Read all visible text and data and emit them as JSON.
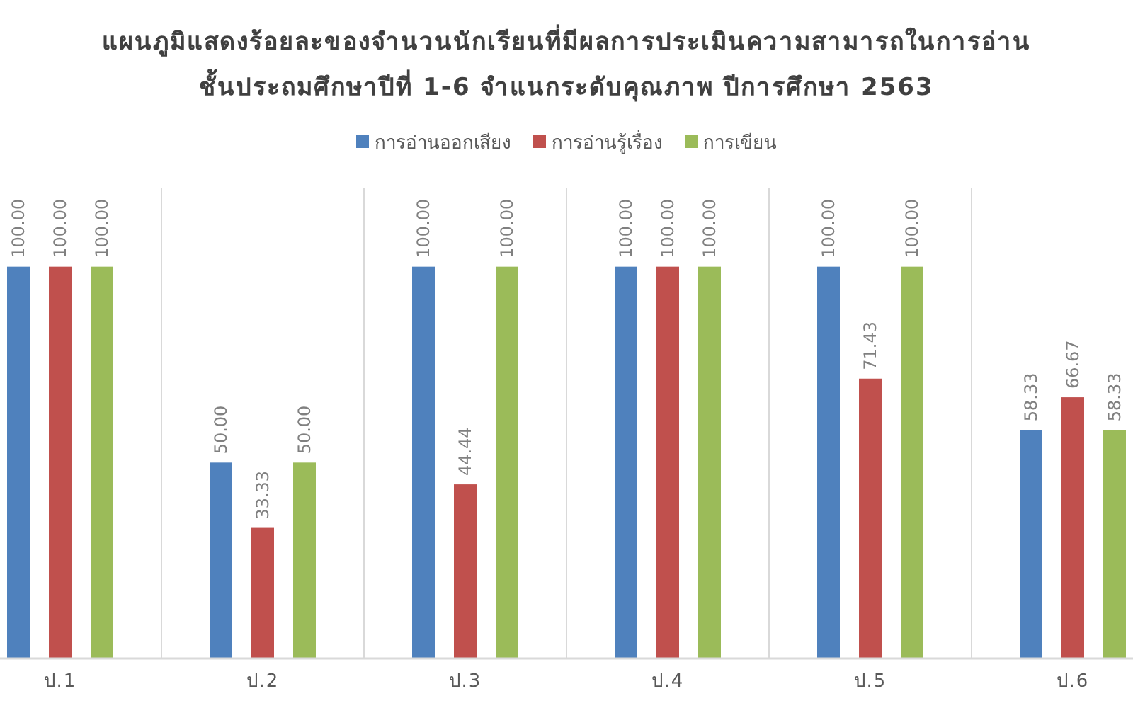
{
  "chart_data": {
    "type": "bar",
    "title": "แผนภูมิแสดงร้อยละของจำนวนนักเรียนที่มีผลการประเมินความสามารถในการอ่าน",
    "subtitle": "ชั้นประถมศึกษาปีที่ 1-6 จำแนกระดับคุณภาพ ปีการศึกษา 2563",
    "categories": [
      "ป.1",
      "ป.2",
      "ป.3",
      "ป.4",
      "ป.5",
      "ป.6"
    ],
    "series": [
      {
        "name": "การอ่านออกเสียง",
        "color": "#4f81bd",
        "values": [
          100,
          50,
          100,
          100,
          100,
          58.33
        ],
        "value_labels": [
          "100.00",
          "50.00",
          "100.00",
          "100.00",
          "100.00",
          "58.33"
        ]
      },
      {
        "name": "การอ่านรู้เรื่อง",
        "color": "#c0504d",
        "values": [
          100,
          33.33,
          44.44,
          100,
          71.43,
          66.67
        ],
        "value_labels": [
          "100.00",
          "33.33",
          "44.44",
          "100.00",
          "71.43",
          "66.67"
        ]
      },
      {
        "name": "การเขียน",
        "color": "#9bbb59",
        "values": [
          100,
          50,
          100,
          100,
          100,
          58.33
        ],
        "value_labels": [
          "100.00",
          "50.00",
          "100.00",
          "100.00",
          "100.00",
          "58.33"
        ]
      }
    ],
    "grid": "x",
    "legend": "top"
  }
}
